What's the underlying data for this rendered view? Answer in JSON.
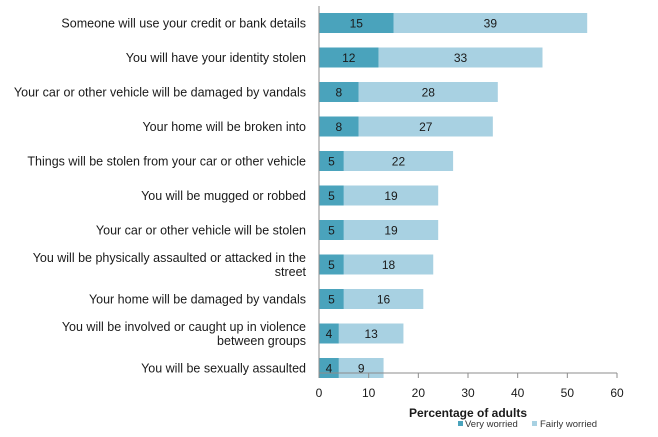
{
  "chart_data": {
    "type": "bar",
    "orientation": "horizontal",
    "stacked": true,
    "categories": [
      [
        "Someone will use your credit or bank details"
      ],
      [
        "You will have your identity stolen"
      ],
      [
        "Your car or other vehicle will be damaged by vandals"
      ],
      [
        "Your home will be broken into"
      ],
      [
        "Things will be stolen from your car or other vehicle"
      ],
      [
        "You will be mugged or robbed"
      ],
      [
        "Your car or other vehicle will be stolen"
      ],
      [
        "You will be physically assaulted or attacked in the",
        "street"
      ],
      [
        "Your home will be damaged by vandals"
      ],
      [
        "You will be involved or caught up in violence",
        "between groups"
      ],
      [
        "You will be sexually assaulted"
      ]
    ],
    "series": [
      {
        "name": "Very worried",
        "color": "#4aa3bc",
        "values": [
          15,
          12,
          8,
          8,
          5,
          5,
          5,
          5,
          5,
          4,
          4
        ]
      },
      {
        "name": "Fairly worried",
        "color": "#a8d1e2",
        "values": [
          39,
          33,
          28,
          27,
          22,
          19,
          19,
          18,
          16,
          13,
          9
        ]
      }
    ],
    "xlabel": "Percentage of adults",
    "xlim": [
      0,
      60
    ],
    "xticks": [
      0,
      10,
      20,
      30,
      40,
      50,
      60
    ],
    "grid": false,
    "legend_position": "bottom-right"
  }
}
